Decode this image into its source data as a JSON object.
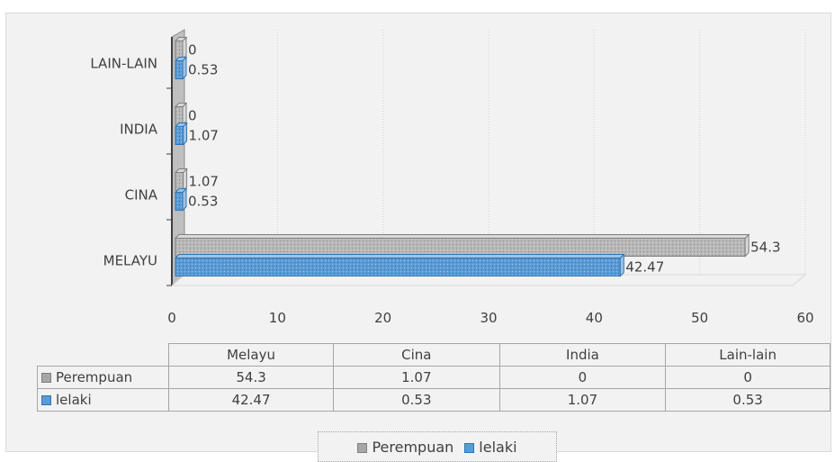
{
  "chart_data": {
    "type": "bar",
    "orientation": "horizontal",
    "categories": [
      "MELAYU",
      "CINA",
      "INDIA",
      "LAIN-LAIN"
    ],
    "series": [
      {
        "name": "Perempuan",
        "values": [
          54.3,
          1.07,
          0,
          0
        ],
        "color": "#a6a6a6"
      },
      {
        "name": "lelaki",
        "values": [
          42.47,
          0.53,
          1.07,
          0.53
        ],
        "color": "#5b9bd5"
      }
    ],
    "x_ticks": [
      "0",
      "10",
      "20",
      "30",
      "40",
      "50",
      "60"
    ],
    "xlim": [
      0,
      60
    ],
    "grid": true,
    "legend_position": "bottom",
    "data_table": {
      "columns": [
        "Melayu",
        "Cina",
        "India",
        "Lain-lain"
      ],
      "rows": [
        {
          "label": "Perempuan",
          "cells": [
            "54.3",
            "1.07",
            "0",
            "0"
          ]
        },
        {
          "label": "lelaki",
          "cells": [
            "42.47",
            "0.53",
            "1.07",
            "0.53"
          ]
        }
      ]
    }
  }
}
